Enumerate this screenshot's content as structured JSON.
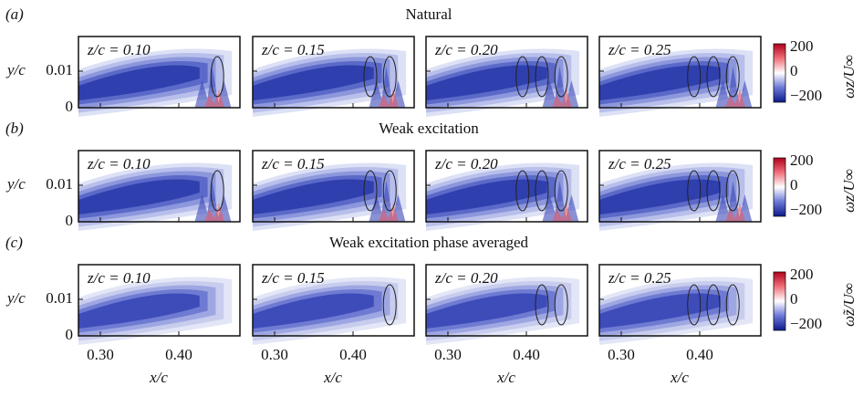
{
  "rows": [
    {
      "label": "(a)",
      "title": "Natural",
      "colorbar": {
        "ticks": [
          "200",
          "0",
          "−200"
        ],
        "label": "ωz/U∞"
      }
    },
    {
      "label": "(b)",
      "title": "Weak excitation",
      "colorbar": {
        "ticks": [
          "200",
          "0",
          "−200"
        ],
        "label": "ωz/U∞"
      }
    },
    {
      "label": "(c)",
      "title": "Weak excitation phase averaged",
      "colorbar": {
        "ticks": [
          "200",
          "0",
          "−200"
        ],
        "label": "ω̃z/U∞"
      }
    }
  ],
  "panels": [
    "z/c = 0.10",
    "z/c = 0.15",
    "z/c = 0.20",
    "z/c = 0.25"
  ],
  "y_axis": {
    "label": "y/c",
    "ticks": [
      "0.01",
      "0"
    ]
  },
  "x_axis": {
    "label": "x/c",
    "ticks": [
      "0.30",
      "0.40"
    ]
  }
}
